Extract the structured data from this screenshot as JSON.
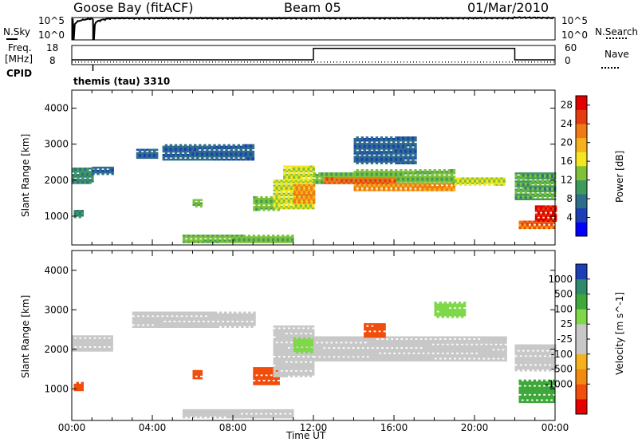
{
  "header": {
    "station": "Goose Bay (fitACF)",
    "beam": "Beam 05",
    "date": "01/Mar/2010"
  },
  "strip1": {
    "left_label": "N.Sky",
    "right_label": "N.Search",
    "y_ticks": [
      "10^5",
      "10^0"
    ]
  },
  "strip2": {
    "left_label_line1": "Freq.",
    "left_label_line2": "[MHz]",
    "cpid_label": "CPID",
    "right_label": "Nave",
    "left_ticks": [
      "18",
      "8"
    ],
    "right_ticks": [
      "60",
      "0"
    ]
  },
  "program": "themis (tau) 3310",
  "x_axis": {
    "label": "Time UT",
    "ticks": [
      "00:00",
      "04:00",
      "08:00",
      "12:00",
      "16:00",
      "20:00",
      "00:00"
    ]
  },
  "colors": {
    "axis": "#000000",
    "power_bar": [
      "#0000ff",
      "#1c3fb8",
      "#2e6e8a",
      "#3f9b5c",
      "#7fc23a",
      "#f5e61f",
      "#f5b21c",
      "#f07a14",
      "#e63b0f",
      "#e00000"
    ],
    "velocity_bar": [
      "#e60000",
      "#f24d0c",
      "#f28a10",
      "#f5b21c",
      "#c8c8c8",
      "#c8c8c8",
      "#7ed84a",
      "#3fa83a",
      "#2e8a6a",
      "#1c3fb8"
    ]
  },
  "chart_data": [
    {
      "type": "line",
      "title": "",
      "xlabel": "",
      "ylabel": "N.Sky",
      "ylim": [
        0,
        100000
      ],
      "x_range_ut_hours": [
        0,
        24
      ],
      "series": [
        {
          "name": "N.Sky",
          "x": [
            0,
            0.1,
            1,
            1.1,
            2,
            6,
            10,
            14,
            18,
            21.9,
            22,
            24
          ],
          "y": [
            60000,
            1,
            60000,
            1,
            70000,
            72000,
            70000,
            71000,
            73000,
            78000,
            100000,
            82000
          ]
        }
      ]
    },
    {
      "type": "line",
      "title": "",
      "xlabel": "",
      "ylabel": "Freq. [MHz]",
      "ylim": [
        8,
        18
      ],
      "right_axis": {
        "label": "Nave",
        "ylim": [
          0,
          60
        ]
      },
      "series": [
        {
          "name": "Freq.",
          "x": [
            0,
            12,
            12,
            22,
            22,
            24
          ],
          "y": [
            10.5,
            10.5,
            16.5,
            16.5,
            10.5,
            10.5
          ]
        },
        {
          "name": "Nave",
          "x": [
            0,
            24
          ],
          "y": [
            8,
            8
          ]
        }
      ]
    },
    {
      "type": "heatmap",
      "title": "",
      "xlabel": "",
      "ylabel": "Slant Range [km]",
      "xlim_ut_hours": [
        0,
        24
      ],
      "ylim": [
        200,
        4500
      ],
      "y_ticks": [
        1000,
        2000,
        3000,
        4000
      ],
      "colorbar": {
        "label": "Power [dB]",
        "ticks": [
          4,
          8,
          12,
          16,
          20,
          24,
          28
        ],
        "range": [
          0,
          30
        ]
      },
      "regions": [
        {
          "t0": 0.0,
          "t1": 1.0,
          "r0": 1900,
          "r1": 2350,
          "value": 8
        },
        {
          "t0": 1.0,
          "t1": 2.0,
          "r0": 2150,
          "r1": 2350,
          "value": 6
        },
        {
          "t0": 0.1,
          "t1": 0.5,
          "r0": 950,
          "r1": 1150,
          "value": 8
        },
        {
          "t0": 3.2,
          "t1": 4.2,
          "r0": 2600,
          "r1": 2850,
          "value": 6
        },
        {
          "t0": 4.5,
          "t1": 9.0,
          "r0": 2550,
          "r1": 3000,
          "value": 6
        },
        {
          "t0": 6.0,
          "t1": 6.4,
          "r0": 1250,
          "r1": 1450,
          "value": 12
        },
        {
          "t0": 9.0,
          "t1": 10.2,
          "r0": 1150,
          "r1": 1550,
          "value": 12
        },
        {
          "t0": 10.0,
          "t1": 12.0,
          "r0": 1200,
          "r1": 2000,
          "value": 14
        },
        {
          "t0": 11.0,
          "t1": 12.0,
          "r0": 1350,
          "r1": 1850,
          "value": 20
        },
        {
          "t0": 10.5,
          "t1": 12.0,
          "r0": 2000,
          "r1": 2400,
          "value": 14
        },
        {
          "t0": 12.0,
          "t1": 14.0,
          "r0": 1900,
          "r1": 2200,
          "value": 12
        },
        {
          "t0": 14.0,
          "t1": 19.0,
          "r0": 1700,
          "r1": 1900,
          "value": 20
        },
        {
          "t0": 14.0,
          "t1": 19.0,
          "r0": 1900,
          "r1": 2300,
          "value": 12
        },
        {
          "t0": 19.0,
          "t1": 21.5,
          "r0": 1850,
          "r1": 2050,
          "value": 14
        },
        {
          "t0": 22.0,
          "t1": 24.0,
          "r0": 1450,
          "r1": 2200,
          "value": 10
        },
        {
          "t0": 22.2,
          "t1": 24.0,
          "r0": 650,
          "r1": 850,
          "value": 22
        },
        {
          "t0": 23.0,
          "t1": 24.0,
          "r0": 850,
          "r1": 1300,
          "value": 26
        },
        {
          "t0": 5.5,
          "t1": 11.0,
          "r0": 260,
          "r1": 450,
          "value": 12
        },
        {
          "t0": 12.5,
          "t1": 16.0,
          "r0": 1900,
          "r1": 2050,
          "value": 22
        },
        {
          "t0": 14.0,
          "t1": 17.0,
          "r0": 2450,
          "r1": 3200,
          "value": 6
        }
      ]
    },
    {
      "type": "heatmap",
      "title": "",
      "xlabel": "Time UT",
      "ylabel": "Slant Range [km]",
      "xlim_ut_hours": [
        0,
        24
      ],
      "ylim": [
        200,
        4500
      ],
      "y_ticks": [
        1000,
        2000,
        3000,
        4000
      ],
      "colorbar": {
        "label": "Velocity [m s^-1]",
        "ticks": [
          1000,
          500,
          100,
          25,
          -25,
          -100,
          -500,
          -1000
        ]
      },
      "regions": [
        {
          "t0": 0.0,
          "t1": 2.0,
          "r0": 1950,
          "r1": 2350,
          "value": 0
        },
        {
          "t0": 0.1,
          "t1": 0.5,
          "r0": 950,
          "r1": 1150,
          "value": -400
        },
        {
          "t0": 3.0,
          "t1": 9.0,
          "r0": 2550,
          "r1": 2950,
          "value": 0
        },
        {
          "t0": 6.0,
          "t1": 6.4,
          "r0": 1250,
          "r1": 1450,
          "value": -300
        },
        {
          "t0": 9.0,
          "t1": 10.2,
          "r0": 1100,
          "r1": 1550,
          "value": -150
        },
        {
          "t0": 10.0,
          "t1": 12.0,
          "r0": 1300,
          "r1": 2600,
          "value": 0
        },
        {
          "t0": 11.0,
          "t1": 12.0,
          "r0": 1900,
          "r1": 2300,
          "value": 80
        },
        {
          "t0": 12.0,
          "t1": 21.5,
          "r0": 1700,
          "r1": 2300,
          "value": 0
        },
        {
          "t0": 14.5,
          "t1": 15.5,
          "r0": 2300,
          "r1": 2650,
          "value": -300
        },
        {
          "t0": 18.0,
          "t1": 19.5,
          "r0": 2800,
          "r1": 3200,
          "value": 60
        },
        {
          "t0": 22.0,
          "t1": 24.0,
          "r0": 1450,
          "r1": 2100,
          "value": 0
        },
        {
          "t0": 22.2,
          "t1": 24.0,
          "r0": 650,
          "r1": 1200,
          "value": 120
        },
        {
          "t0": 5.5,
          "t1": 11.0,
          "r0": 260,
          "r1": 450,
          "value": 0
        }
      ]
    }
  ]
}
